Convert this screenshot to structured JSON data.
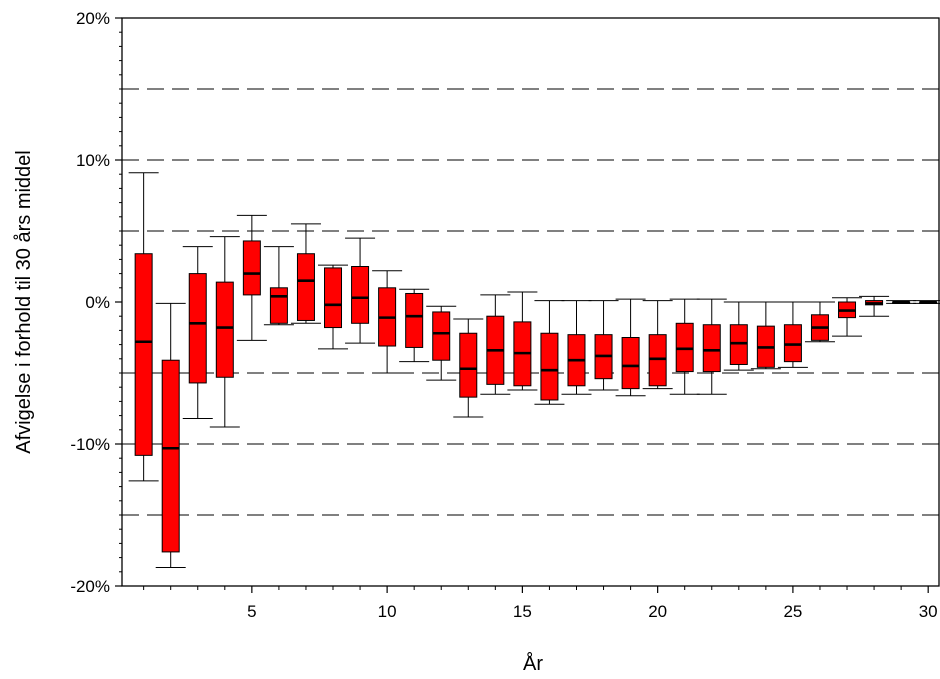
{
  "chart_data": {
    "type": "box",
    "title": "",
    "xlabel": "År",
    "ylabel": "Afvigelse i forhold til 30 års middel",
    "x_ticks": [
      5,
      10,
      15,
      20,
      25,
      30
    ],
    "y_ticks": [
      -20,
      -10,
      0,
      10,
      20
    ],
    "y_tick_labels": [
      "-20%",
      "-10%",
      "0%",
      "10%",
      "20%"
    ],
    "xlim": [
      0.2,
      30.4
    ],
    "ylim": [
      -20,
      20
    ],
    "reference_lines": [
      -15,
      -10,
      -5,
      5,
      10,
      15
    ],
    "box_color": "#ff0000",
    "boxes": [
      {
        "x": 1,
        "whisker_low": -12.6,
        "q1": -10.8,
        "median": -2.8,
        "q3": 3.4,
        "whisker_high": 9.1
      },
      {
        "x": 2,
        "whisker_low": -18.7,
        "q1": -17.6,
        "median": -10.3,
        "q3": -4.1,
        "whisker_high": -0.1
      },
      {
        "x": 3,
        "whisker_low": -8.2,
        "q1": -5.7,
        "median": -1.5,
        "q3": 2.0,
        "whisker_high": 3.9
      },
      {
        "x": 4,
        "whisker_low": -8.8,
        "q1": -5.3,
        "median": -1.8,
        "q3": 1.4,
        "whisker_high": 4.6
      },
      {
        "x": 5,
        "whisker_low": -2.7,
        "q1": 0.5,
        "median": 2.0,
        "q3": 4.3,
        "whisker_high": 6.1
      },
      {
        "x": 6,
        "whisker_low": -1.6,
        "q1": -1.5,
        "median": 0.4,
        "q3": 1.0,
        "whisker_high": 3.9
      },
      {
        "x": 7,
        "whisker_low": -1.5,
        "q1": -1.3,
        "median": 1.5,
        "q3": 3.4,
        "whisker_high": 5.5
      },
      {
        "x": 8,
        "whisker_low": -3.3,
        "q1": -1.8,
        "median": -0.2,
        "q3": 2.4,
        "whisker_high": 2.6
      },
      {
        "x": 9,
        "whisker_low": -2.9,
        "q1": -1.5,
        "median": 0.3,
        "q3": 2.5,
        "whisker_high": 4.5
      },
      {
        "x": 10,
        "whisker_low": -5.0,
        "q1": -3.1,
        "median": -1.1,
        "q3": 1.0,
        "whisker_high": 2.2
      },
      {
        "x": 11,
        "whisker_low": -4.2,
        "q1": -3.2,
        "median": -1.0,
        "q3": 0.6,
        "whisker_high": 0.9
      },
      {
        "x": 12,
        "whisker_low": -5.5,
        "q1": -4.1,
        "median": -2.2,
        "q3": -0.7,
        "whisker_high": -0.3
      },
      {
        "x": 13,
        "whisker_low": -8.1,
        "q1": -6.7,
        "median": -4.7,
        "q3": -2.2,
        "whisker_high": -1.2
      },
      {
        "x": 14,
        "whisker_low": -6.5,
        "q1": -5.8,
        "median": -3.4,
        "q3": -1.0,
        "whisker_high": 0.5
      },
      {
        "x": 15,
        "whisker_low": -6.2,
        "q1": -5.9,
        "median": -3.6,
        "q3": -1.4,
        "whisker_high": 0.7
      },
      {
        "x": 16,
        "whisker_low": -7.2,
        "q1": -6.9,
        "median": -4.8,
        "q3": -2.2,
        "whisker_high": 0.1
      },
      {
        "x": 17,
        "whisker_low": -6.5,
        "q1": -5.9,
        "median": -4.1,
        "q3": -2.3,
        "whisker_high": 0.1
      },
      {
        "x": 18,
        "whisker_low": -6.2,
        "q1": -5.4,
        "median": -3.8,
        "q3": -2.3,
        "whisker_high": 0.1
      },
      {
        "x": 19,
        "whisker_low": -6.6,
        "q1": -6.1,
        "median": -4.5,
        "q3": -2.5,
        "whisker_high": 0.2
      },
      {
        "x": 20,
        "whisker_low": -6.1,
        "q1": -5.9,
        "median": -4.0,
        "q3": -2.3,
        "whisker_high": 0.1
      },
      {
        "x": 21,
        "whisker_low": -6.5,
        "q1": -4.9,
        "median": -3.3,
        "q3": -1.5,
        "whisker_high": 0.2
      },
      {
        "x": 22,
        "whisker_low": -6.5,
        "q1": -4.9,
        "median": -3.4,
        "q3": -1.6,
        "whisker_high": 0.2
      },
      {
        "x": 23,
        "whisker_low": -4.8,
        "q1": -4.4,
        "median": -2.9,
        "q3": -1.6,
        "whisker_high": 0.0
      },
      {
        "x": 24,
        "whisker_low": -4.7,
        "q1": -4.6,
        "median": -3.2,
        "q3": -1.7,
        "whisker_high": 0.0
      },
      {
        "x": 25,
        "whisker_low": -4.6,
        "q1": -4.2,
        "median": -3.0,
        "q3": -1.6,
        "whisker_high": 0.0
      },
      {
        "x": 26,
        "whisker_low": -2.8,
        "q1": -2.7,
        "median": -1.8,
        "q3": -0.9,
        "whisker_high": 0.0
      },
      {
        "x": 27,
        "whisker_low": -2.4,
        "q1": -1.1,
        "median": -0.6,
        "q3": 0.0,
        "whisker_high": 0.3
      },
      {
        "x": 28,
        "whisker_low": -1.0,
        "q1": -0.2,
        "median": -0.1,
        "q3": 0.1,
        "whisker_high": 0.4
      },
      {
        "x": 29,
        "whisker_low": -0.1,
        "q1": 0.0,
        "median": 0.0,
        "q3": 0.0,
        "whisker_high": 0.1
      },
      {
        "x": 30,
        "whisker_low": -0.1,
        "q1": 0.0,
        "median": 0.0,
        "q3": 0.0,
        "whisker_high": 0.1
      }
    ]
  }
}
